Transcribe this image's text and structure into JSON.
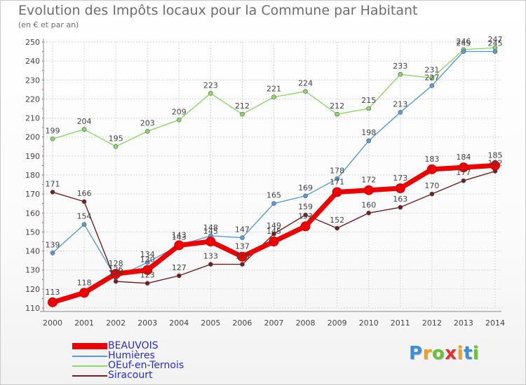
{
  "page": {
    "title": "Evolution des Impôts locaux pour la Commune par Habitant",
    "subtitle": "(en € et par an)",
    "logo_letters": [
      "P",
      "r",
      "o",
      "x",
      "i",
      "t",
      "i"
    ],
    "logo_colors": [
      "#3a8fd8",
      "#f0a020",
      "#6cbf3a",
      "#e03030",
      "#f0a020",
      "#3a8fd8",
      "#6cbf3a"
    ]
  },
  "chart_data": {
    "type": "line",
    "title": "Evolution des Impôts locaux pour la Commune par Habitant",
    "subtitle": "(en € et par an)",
    "xlabel": "",
    "ylabel": "",
    "ylim": [
      110,
      250
    ],
    "yticks": [
      110,
      120,
      130,
      140,
      150,
      160,
      170,
      180,
      190,
      200,
      210,
      220,
      230,
      240,
      250
    ],
    "grid": true,
    "legend_position": "bottom-left",
    "x": [
      "2000",
      "2001",
      "2002",
      "2003",
      "2004",
      "2005",
      "2006",
      "2007",
      "2008",
      "2009",
      "2010",
      "2011",
      "2012",
      "2013",
      "2014"
    ],
    "series": [
      {
        "name": "OEuf-en-Ternois",
        "color": "#8dd86a",
        "values": [
          199,
          204,
          195,
          203,
          209,
          223,
          212,
          221,
          224,
          212,
          215,
          233,
          231,
          246,
          247
        ]
      },
      {
        "name": "Humières",
        "color": "#5b9bd5",
        "values": [
          139,
          154,
          126,
          134,
          143,
          148,
          147,
          165,
          169,
          178,
          198,
          213,
          227,
          245,
          245
        ]
      },
      {
        "name": "Siracourt",
        "color": "#6e1f1f",
        "values": [
          171,
          166,
          124,
          123,
          127,
          133,
          133,
          149,
          159,
          152,
          160,
          163,
          170,
          177,
          182
        ]
      },
      {
        "name": "BEAUVOIS",
        "color": "#ee0000",
        "values": [
          113,
          118,
          128,
          130,
          143,
          145,
          137,
          145,
          153,
          171,
          172,
          173,
          183,
          184,
          185
        ]
      }
    ],
    "legend_order": [
      "BEAUVOIS",
      "Humières",
      "OEuf-en-Ternois",
      "Siracourt"
    ]
  }
}
